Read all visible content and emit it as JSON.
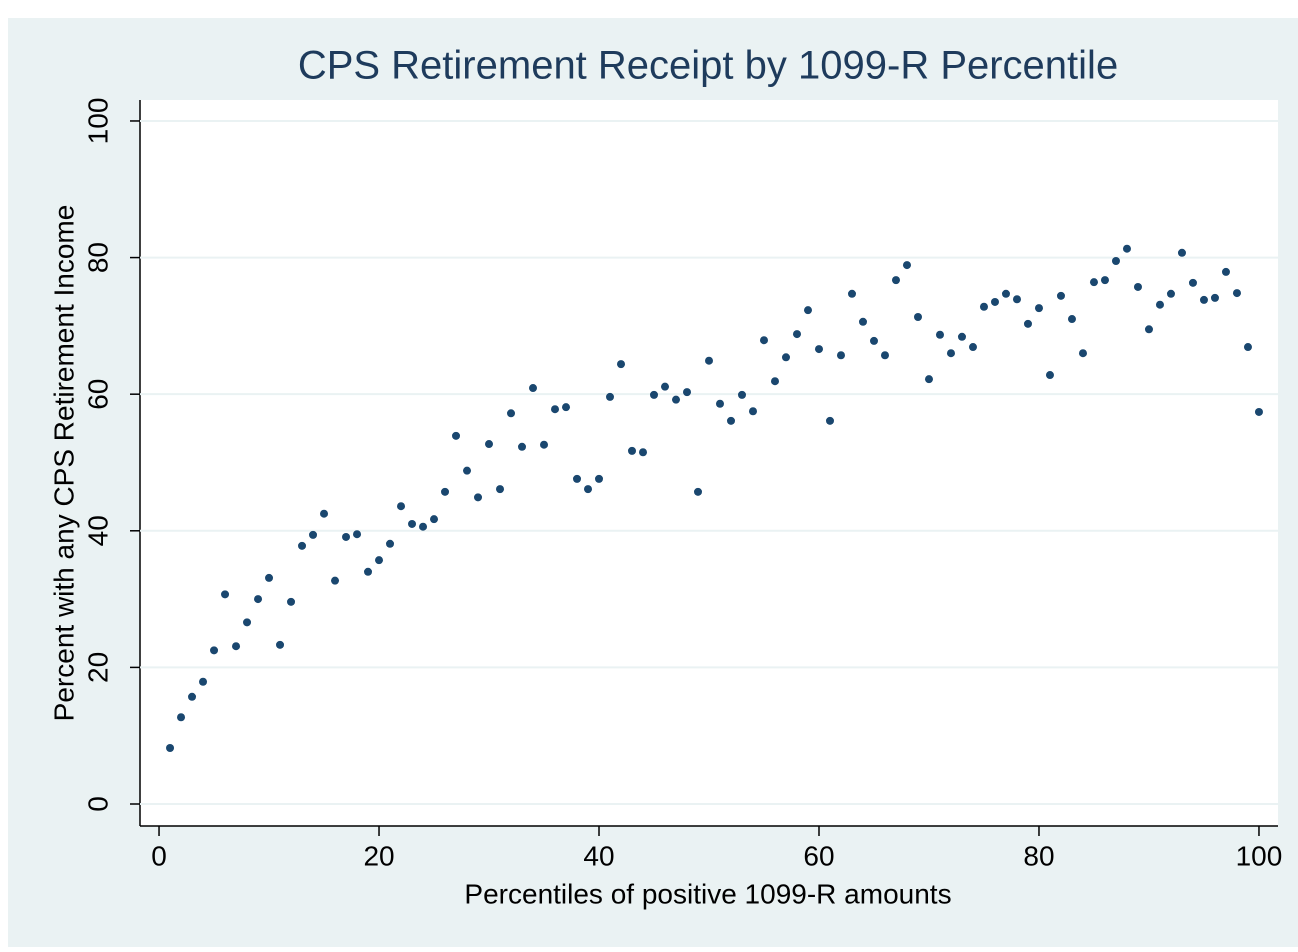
{
  "chart_data": {
    "type": "scatter",
    "title": "CPS Retirement Receipt by 1099-R Percentile",
    "x_label": "Percentiles of positive 1099-R amounts",
    "y_label": "Percent with any CPS Retirement Income",
    "color": "#1a476f",
    "grid": true,
    "xlim": [
      -1.73,
      101.73
    ],
    "ylim": [
      -3.22,
      103.07
    ],
    "xticks": [
      0,
      20,
      40,
      60,
      80,
      100
    ],
    "yticks": [
      0,
      20,
      40,
      60,
      80,
      100
    ],
    "x": [
      1,
      2,
      3,
      4,
      5,
      6,
      7,
      8,
      9,
      10,
      11,
      12,
      13,
      14,
      15,
      16,
      17,
      18,
      19,
      20,
      21,
      22,
      23,
      24,
      25,
      26,
      27,
      28,
      29,
      30,
      31,
      32,
      33,
      34,
      35,
      36,
      37,
      38,
      39,
      40,
      41,
      42,
      43,
      44,
      45,
      46,
      47,
      48,
      49,
      50,
      51,
      52,
      53,
      54,
      55,
      56,
      57,
      58,
      59,
      60,
      61,
      62,
      63,
      64,
      65,
      66,
      67,
      68,
      69,
      70,
      71,
      72,
      73,
      74,
      75,
      76,
      77,
      78,
      79,
      80,
      81,
      82,
      83,
      84,
      85,
      86,
      87,
      88,
      89,
      90,
      91,
      92,
      93,
      94,
      95,
      96,
      97,
      98,
      99,
      100
    ],
    "values": [
      8.2,
      12.7,
      15.7,
      17.9,
      22.5,
      30.7,
      23.1,
      26.6,
      30.0,
      33.1,
      23.3,
      29.6,
      37.8,
      39.4,
      42.5,
      32.7,
      39.1,
      39.5,
      34.0,
      35.7,
      38.1,
      43.6,
      41.0,
      40.6,
      41.7,
      45.7,
      53.9,
      48.8,
      44.9,
      52.7,
      46.1,
      57.2,
      52.3,
      60.9,
      52.6,
      57.8,
      58.1,
      47.6,
      46.1,
      47.6,
      59.6,
      64.4,
      51.7,
      51.5,
      59.9,
      61.1,
      59.2,
      60.3,
      45.7,
      64.9,
      58.6,
      56.1,
      59.9,
      57.5,
      67.9,
      61.9,
      65.4,
      68.8,
      72.3,
      66.6,
      56.1,
      65.7,
      74.7,
      70.6,
      67.8,
      65.7,
      76.7,
      78.9,
      71.3,
      62.2,
      68.7,
      66.0,
      68.4,
      66.9,
      72.8,
      73.5,
      74.7,
      73.9,
      70.3,
      72.6,
      62.8,
      74.4,
      71.0,
      66.0,
      76.4,
      76.7,
      79.5,
      81.3,
      75.7,
      69.5,
      73.1,
      74.7,
      80.7,
      76.3,
      73.8,
      74.1,
      77.9,
      74.8,
      66.9,
      57.4
    ]
  }
}
